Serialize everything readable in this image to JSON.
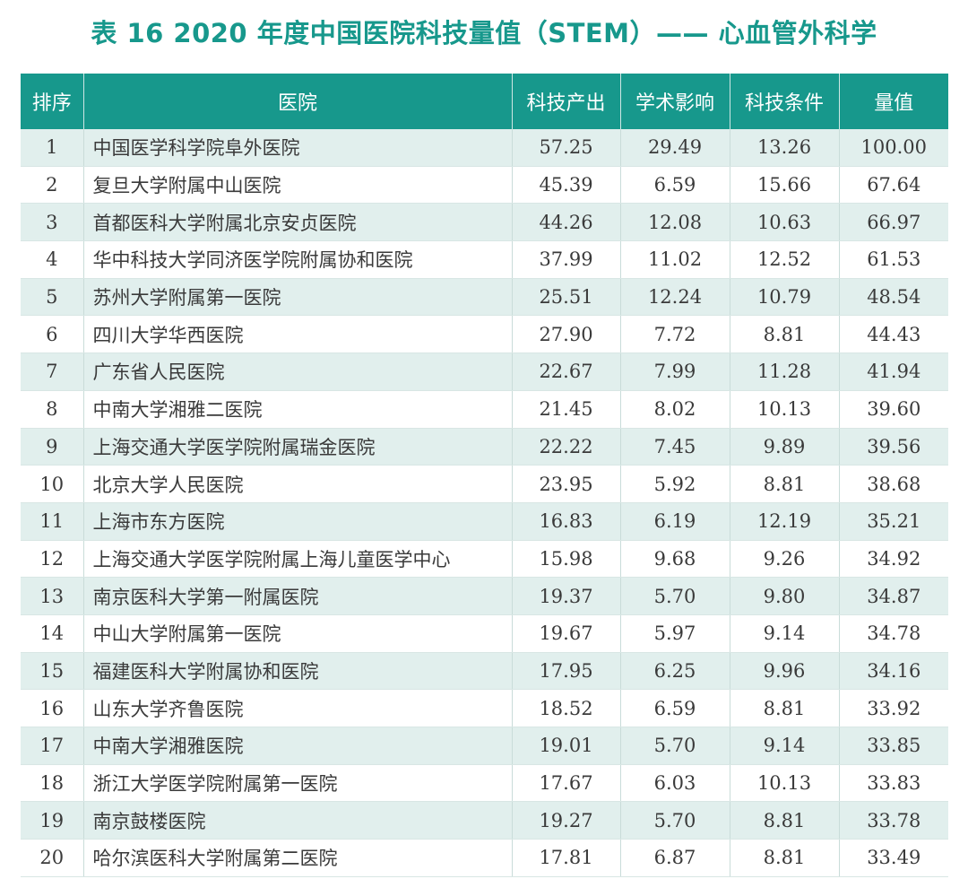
{
  "title": "表 16   2020 年度中国医院科技量值（STEM）—— 心血管外科学",
  "headers": {
    "rank": "排序",
    "hospital": "医院",
    "output": "科技产出",
    "influence": "学术影响",
    "conditions": "科技条件",
    "value": "量值"
  },
  "rows": [
    {
      "rank": "1",
      "hospital": "中国医学科学院阜外医院",
      "output": "57.25",
      "influence": "29.49",
      "conditions": "13.26",
      "value": "100.00"
    },
    {
      "rank": "2",
      "hospital": "复旦大学附属中山医院",
      "output": "45.39",
      "influence": "6.59",
      "conditions": "15.66",
      "value": "67.64"
    },
    {
      "rank": "3",
      "hospital": "首都医科大学附属北京安贞医院",
      "output": "44.26",
      "influence": "12.08",
      "conditions": "10.63",
      "value": "66.97"
    },
    {
      "rank": "4",
      "hospital": "华中科技大学同济医学院附属协和医院",
      "output": "37.99",
      "influence": "11.02",
      "conditions": "12.52",
      "value": "61.53"
    },
    {
      "rank": "5",
      "hospital": "苏州大学附属第一医院",
      "output": "25.51",
      "influence": "12.24",
      "conditions": "10.79",
      "value": "48.54"
    },
    {
      "rank": "6",
      "hospital": "四川大学华西医院",
      "output": "27.90",
      "influence": "7.72",
      "conditions": "8.81",
      "value": "44.43"
    },
    {
      "rank": "7",
      "hospital": "广东省人民医院",
      "output": "22.67",
      "influence": "7.99",
      "conditions": "11.28",
      "value": "41.94"
    },
    {
      "rank": "8",
      "hospital": "中南大学湘雅二医院",
      "output": "21.45",
      "influence": "8.02",
      "conditions": "10.13",
      "value": "39.60"
    },
    {
      "rank": "9",
      "hospital": "上海交通大学医学院附属瑞金医院",
      "output": "22.22",
      "influence": "7.45",
      "conditions": "9.89",
      "value": "39.56"
    },
    {
      "rank": "10",
      "hospital": "北京大学人民医院",
      "output": "23.95",
      "influence": "5.92",
      "conditions": "8.81",
      "value": "38.68"
    },
    {
      "rank": "11",
      "hospital": "上海市东方医院",
      "output": "16.83",
      "influence": "6.19",
      "conditions": "12.19",
      "value": "35.21"
    },
    {
      "rank": "12",
      "hospital": "上海交通大学医学院附属上海儿童医学中心",
      "output": "15.98",
      "influence": "9.68",
      "conditions": "9.26",
      "value": "34.92"
    },
    {
      "rank": "13",
      "hospital": "南京医科大学第一附属医院",
      "output": "19.37",
      "influence": "5.70",
      "conditions": "9.80",
      "value": "34.87"
    },
    {
      "rank": "14",
      "hospital": "中山大学附属第一医院",
      "output": "19.67",
      "influence": "5.97",
      "conditions": "9.14",
      "value": "34.78"
    },
    {
      "rank": "15",
      "hospital": "福建医科大学附属协和医院",
      "output": "17.95",
      "influence": "6.25",
      "conditions": "9.96",
      "value": "34.16"
    },
    {
      "rank": "16",
      "hospital": "山东大学齐鲁医院",
      "output": "18.52",
      "influence": "6.59",
      "conditions": "8.81",
      "value": "33.92"
    },
    {
      "rank": "17",
      "hospital": "中南大学湘雅医院",
      "output": "19.01",
      "influence": "5.70",
      "conditions": "9.14",
      "value": "33.85"
    },
    {
      "rank": "18",
      "hospital": "浙江大学医学院附属第一医院",
      "output": "17.67",
      "influence": "6.03",
      "conditions": "10.13",
      "value": "33.83"
    },
    {
      "rank": "19",
      "hospital": "南京鼓楼医院",
      "output": "19.27",
      "influence": "5.70",
      "conditions": "8.81",
      "value": "33.78"
    },
    {
      "rank": "20",
      "hospital": "哈尔滨医科大学附属第二医院",
      "output": "17.81",
      "influence": "6.87",
      "conditions": "8.81",
      "value": "33.49"
    }
  ],
  "colors": {
    "accent": "#17988c",
    "row_stripe": "#e1efed"
  }
}
